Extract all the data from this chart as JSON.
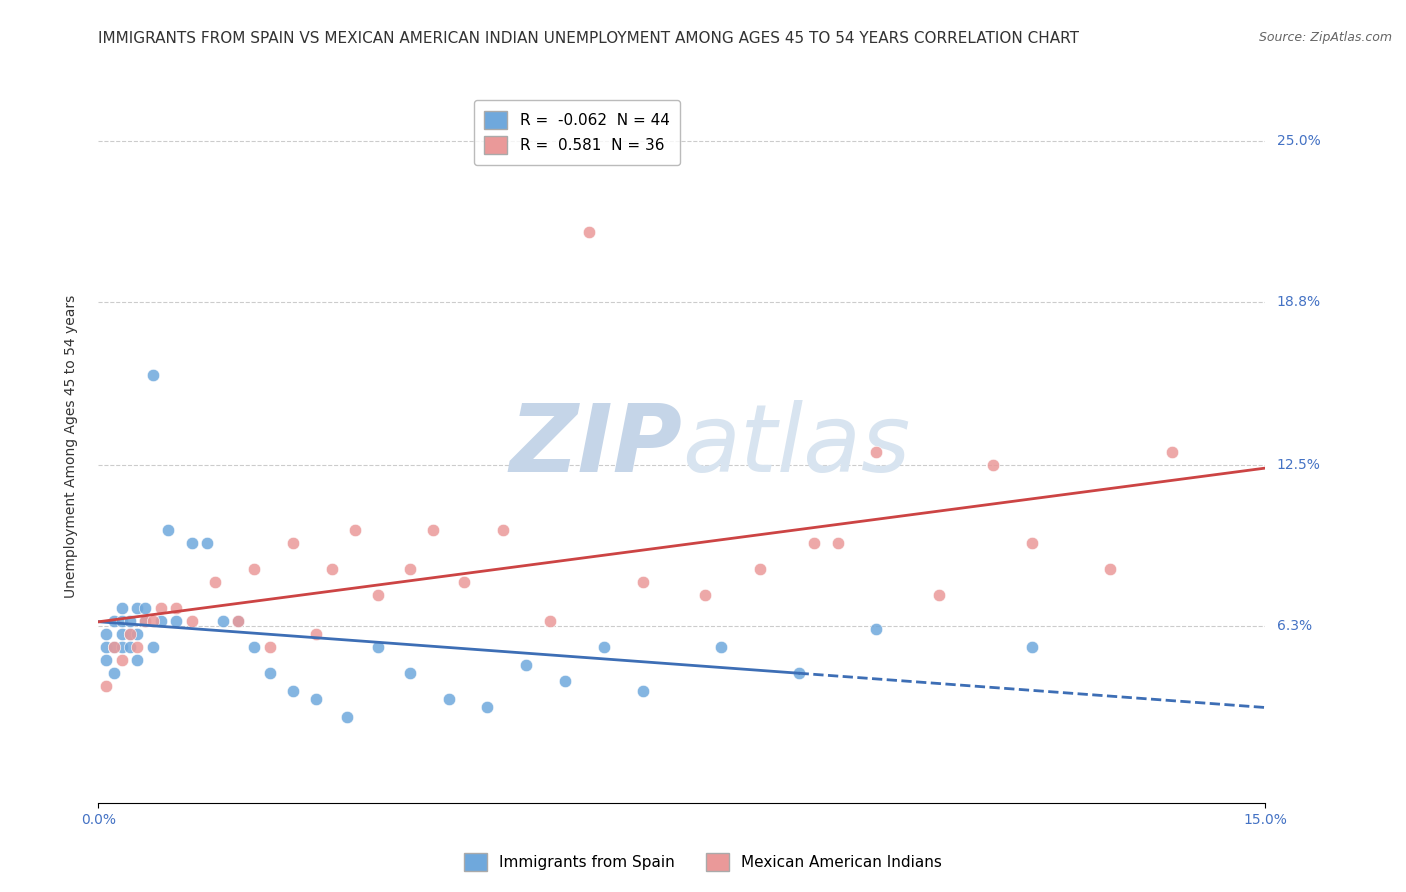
{
  "title": "IMMIGRANTS FROM SPAIN VS MEXICAN AMERICAN INDIAN UNEMPLOYMENT AMONG AGES 45 TO 54 YEARS CORRELATION CHART",
  "source": "Source: ZipAtlas.com",
  "ylabel": "Unemployment Among Ages 45 to 54 years",
  "ytick_labels": [
    "6.3%",
    "12.5%",
    "18.8%",
    "25.0%"
  ],
  "ytick_values": [
    0.063,
    0.125,
    0.188,
    0.25
  ],
  "xmin": 0.0,
  "xmax": 0.15,
  "ymin": -0.005,
  "ymax": 0.27,
  "watermark": "ZIPatlas",
  "series": [
    {
      "name": "Immigrants from Spain",
      "color": "#6fa8dc",
      "R": -0.062,
      "N": 44,
      "x": [
        0.001,
        0.001,
        0.001,
        0.002,
        0.002,
        0.002,
        0.003,
        0.003,
        0.003,
        0.003,
        0.004,
        0.004,
        0.004,
        0.005,
        0.005,
        0.005,
        0.006,
        0.006,
        0.007,
        0.007,
        0.008,
        0.009,
        0.01,
        0.012,
        0.014,
        0.016,
        0.018,
        0.02,
        0.022,
        0.025,
        0.028,
        0.032,
        0.036,
        0.04,
        0.045,
        0.05,
        0.055,
        0.06,
        0.065,
        0.07,
        0.08,
        0.09,
        0.1,
        0.12
      ],
      "y": [
        0.055,
        0.06,
        0.05,
        0.055,
        0.045,
        0.065,
        0.06,
        0.055,
        0.065,
        0.07,
        0.06,
        0.055,
        0.065,
        0.05,
        0.06,
        0.07,
        0.065,
        0.07,
        0.055,
        0.16,
        0.065,
        0.1,
        0.065,
        0.095,
        0.095,
        0.065,
        0.065,
        0.055,
        0.045,
        0.038,
        0.035,
        0.028,
        0.055,
        0.045,
        0.035,
        0.032,
        0.048,
        0.042,
        0.055,
        0.038,
        0.055,
        0.045,
        0.062,
        0.055
      ]
    },
    {
      "name": "Mexican American Indians",
      "color": "#ea9999",
      "R": 0.581,
      "N": 36,
      "x": [
        0.001,
        0.002,
        0.003,
        0.004,
        0.005,
        0.006,
        0.007,
        0.008,
        0.01,
        0.012,
        0.015,
        0.018,
        0.02,
        0.022,
        0.025,
        0.028,
        0.03,
        0.033,
        0.036,
        0.04,
        0.043,
        0.047,
        0.052,
        0.058,
        0.063,
        0.07,
        0.078,
        0.085,
        0.092,
        0.095,
        0.1,
        0.108,
        0.115,
        0.12,
        0.13,
        0.138
      ],
      "y": [
        0.04,
        0.055,
        0.05,
        0.06,
        0.055,
        0.065,
        0.065,
        0.07,
        0.07,
        0.065,
        0.08,
        0.065,
        0.085,
        0.055,
        0.095,
        0.06,
        0.085,
        0.1,
        0.075,
        0.085,
        0.1,
        0.08,
        0.1,
        0.065,
        0.215,
        0.08,
        0.075,
        0.085,
        0.095,
        0.095,
        0.13,
        0.075,
        0.125,
        0.095,
        0.085,
        0.13
      ]
    }
  ],
  "blue_line_color": "#3d6eb5",
  "pink_line_color": "#cc4444",
  "grid_color": "#cccccc",
  "title_fontsize": 11,
  "axis_label_fontsize": 10,
  "tick_fontsize": 10,
  "watermark_color": "#d8e4f0",
  "background_color": "#ffffff"
}
